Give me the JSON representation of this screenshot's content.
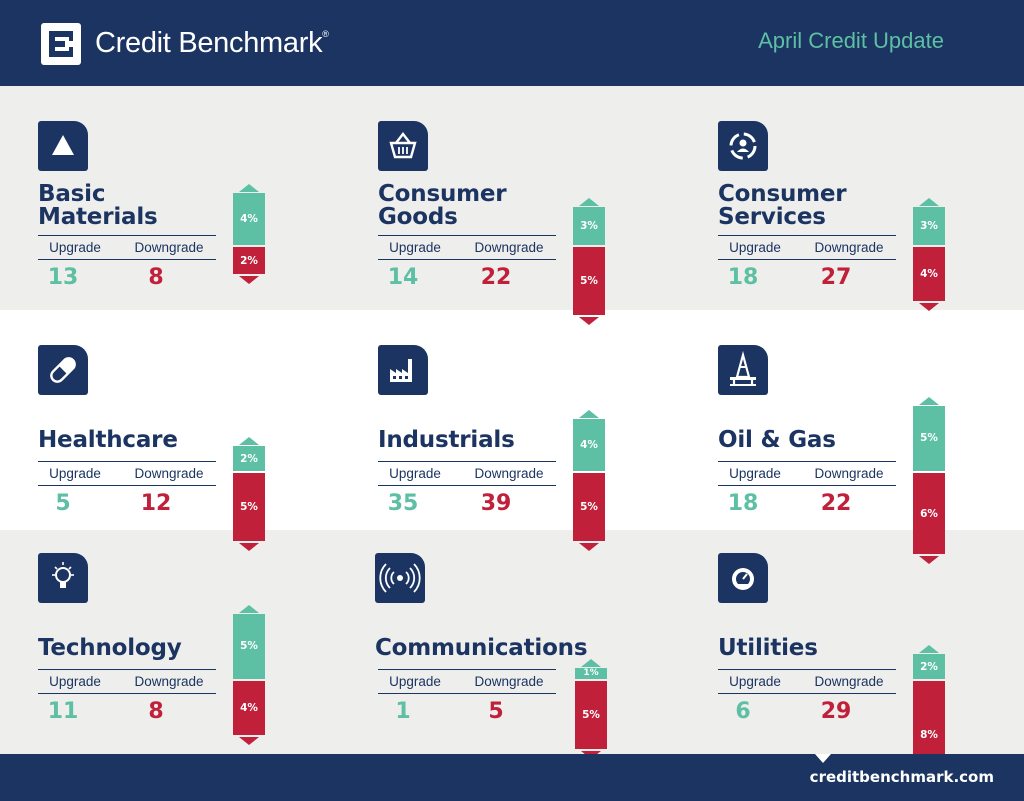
{
  "header": {
    "brand": "Credit Benchmark",
    "brand_mark": "®",
    "update_title": "April Credit Update"
  },
  "footer": {
    "site": "creditbenchmark.com"
  },
  "labels": {
    "upgrade": "Upgrade",
    "downgrade": "Downgrade"
  },
  "colors": {
    "navy": "#1c3461",
    "upgrade": "#5dbfa3",
    "downgrade": "#c0203a"
  },
  "chart_data": {
    "type": "bar",
    "categories": [
      "Basic Materials",
      "Consumer Goods",
      "Consumer Services",
      "Healthcare",
      "Industrials",
      "Oil & Gas",
      "Technology",
      "Communications",
      "Utilities"
    ],
    "series": [
      {
        "name": "Upgrade",
        "values": [
          4,
          3,
          3,
          2,
          4,
          5,
          5,
          1,
          2
        ],
        "counts": [
          13,
          14,
          18,
          5,
          35,
          18,
          11,
          1,
          6
        ]
      },
      {
        "name": "Downgrade",
        "values": [
          2,
          5,
          4,
          5,
          5,
          6,
          4,
          5,
          8
        ],
        "counts": [
          8,
          22,
          27,
          12,
          39,
          22,
          8,
          5,
          29
        ]
      }
    ],
    "unit": "%"
  },
  "sectors": [
    {
      "title_lines": [
        "Basic",
        "Materials"
      ],
      "icon": "triangle-icon",
      "upgrade": 13,
      "downgrade": 8,
      "up_pct": 4,
      "down_pct": 2,
      "up_label": "4%",
      "down_label": "2%"
    },
    {
      "title_lines": [
        "Consumer",
        "Goods"
      ],
      "icon": "basket-icon",
      "upgrade": 14,
      "downgrade": 22,
      "up_pct": 3,
      "down_pct": 5,
      "up_label": "3%",
      "down_label": "5%"
    },
    {
      "title_lines": [
        "Consumer",
        "Services"
      ],
      "icon": "service-cycle-icon",
      "upgrade": 18,
      "downgrade": 27,
      "up_pct": 3,
      "down_pct": 4,
      "up_label": "3%",
      "down_label": "4%"
    },
    {
      "title_lines": [
        "Healthcare"
      ],
      "icon": "pill-icon",
      "upgrade": 5,
      "downgrade": 12,
      "up_pct": 2,
      "down_pct": 5,
      "up_label": "2%",
      "down_label": "5%"
    },
    {
      "title_lines": [
        "Industrials"
      ],
      "icon": "factory-icon",
      "upgrade": 35,
      "downgrade": 39,
      "up_pct": 4,
      "down_pct": 5,
      "up_label": "4%",
      "down_label": "5%"
    },
    {
      "title_lines": [
        "Oil & Gas"
      ],
      "icon": "oil-rig-icon",
      "upgrade": 18,
      "downgrade": 22,
      "up_pct": 5,
      "down_pct": 6,
      "up_label": "5%",
      "down_label": "6%"
    },
    {
      "title_lines": [
        "Technology"
      ],
      "icon": "lightbulb-icon",
      "upgrade": 11,
      "downgrade": 8,
      "up_pct": 5,
      "down_pct": 4,
      "up_label": "5%",
      "down_label": "4%"
    },
    {
      "title_lines": [
        "Communications"
      ],
      "icon": "signal-icon",
      "upgrade": 1,
      "downgrade": 5,
      "up_pct": 1,
      "down_pct": 5,
      "up_label": "1%",
      "down_label": "5%"
    },
    {
      "title_lines": [
        "Utilities"
      ],
      "icon": "gauge-icon",
      "upgrade": 6,
      "downgrade": 29,
      "up_pct": 2,
      "down_pct": 8,
      "up_label": "2%",
      "down_label": "8%"
    }
  ]
}
